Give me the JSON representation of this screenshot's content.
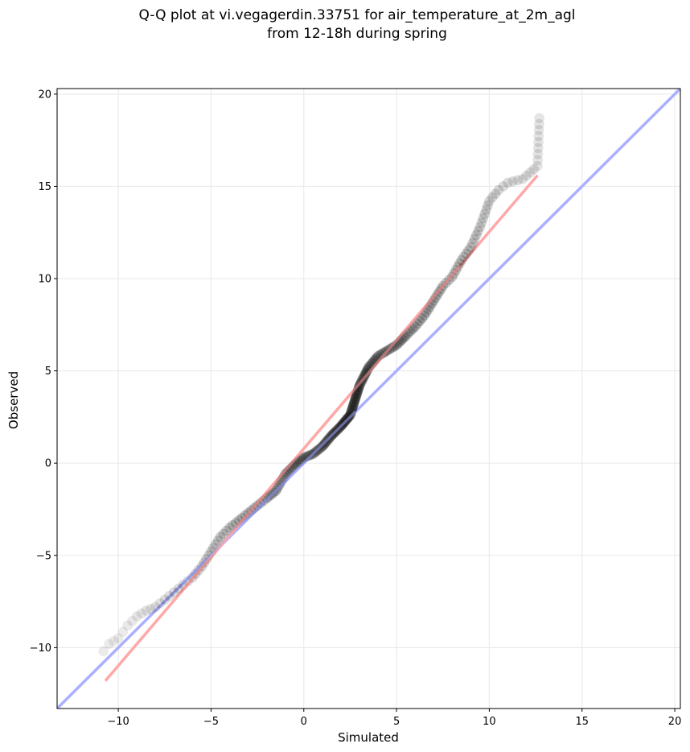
{
  "title_line1": "Q-Q plot at vi.vegagerdin.33751 for air_temperature_at_2m_agl",
  "title_line2": "from 12-18h during spring",
  "chart_data": {
    "type": "scatter",
    "xlabel": "Simulated",
    "ylabel": "Observed",
    "xlim": [
      -13.3,
      20.3
    ],
    "ylim": [
      -13.3,
      20.3
    ],
    "xticks": [
      -10,
      -5,
      0,
      5,
      10,
      15,
      20
    ],
    "yticks": [
      -10,
      -5,
      0,
      5,
      10,
      15,
      20
    ],
    "xtick_labels": [
      "−10",
      "−5",
      "0",
      "5",
      "10",
      "15",
      "20"
    ],
    "ytick_labels": [
      "−10",
      "−5",
      "0",
      "5",
      "10",
      "15",
      "20"
    ],
    "grid": true,
    "point_color": "#000000",
    "reference_line": {
      "color": "#aab0ff",
      "from": [
        -13.3,
        -13.3
      ],
      "to": [
        20.3,
        20.3
      ]
    },
    "fit_line": {
      "color": "#ffa8a8",
      "from": [
        -10.7,
        -11.8
      ],
      "to": [
        12.6,
        15.6
      ]
    },
    "qq_curve": [
      [
        -10.8,
        -10.2
      ],
      [
        -10.5,
        -9.8
      ],
      [
        -10.0,
        -9.5
      ],
      [
        -9.5,
        -8.8
      ],
      [
        -9.0,
        -8.3
      ],
      [
        -8.5,
        -8.0
      ],
      [
        -8.0,
        -7.8
      ],
      [
        -7.5,
        -7.4
      ],
      [
        -7.0,
        -7.0
      ],
      [
        -6.5,
        -6.6
      ],
      [
        -6.0,
        -6.2
      ],
      [
        -5.5,
        -5.6
      ],
      [
        -5.0,
        -4.8
      ],
      [
        -4.5,
        -4.0
      ],
      [
        -4.0,
        -3.5
      ],
      [
        -3.5,
        -3.1
      ],
      [
        -3.0,
        -2.7
      ],
      [
        -2.5,
        -2.3
      ],
      [
        -2.0,
        -1.9
      ],
      [
        -1.5,
        -1.5
      ],
      [
        -1.0,
        -0.6
      ],
      [
        -0.5,
        -0.1
      ],
      [
        0.0,
        0.3
      ],
      [
        0.5,
        0.5
      ],
      [
        1.0,
        0.9
      ],
      [
        1.5,
        1.5
      ],
      [
        2.0,
        2.0
      ],
      [
        2.5,
        2.6
      ],
      [
        3.0,
        4.2
      ],
      [
        3.5,
        5.2
      ],
      [
        4.0,
        5.8
      ],
      [
        4.5,
        6.1
      ],
      [
        5.0,
        6.4
      ],
      [
        5.5,
        6.9
      ],
      [
        6.0,
        7.4
      ],
      [
        6.5,
        8.0
      ],
      [
        7.0,
        8.8
      ],
      [
        7.5,
        9.6
      ],
      [
        8.0,
        10.1
      ],
      [
        8.5,
        11.0
      ],
      [
        9.0,
        11.7
      ],
      [
        9.5,
        12.8
      ],
      [
        10.0,
        14.2
      ],
      [
        10.5,
        14.8
      ],
      [
        11.0,
        15.2
      ],
      [
        11.8,
        15.4
      ],
      [
        12.6,
        16.1
      ],
      [
        12.7,
        18.7
      ]
    ]
  }
}
